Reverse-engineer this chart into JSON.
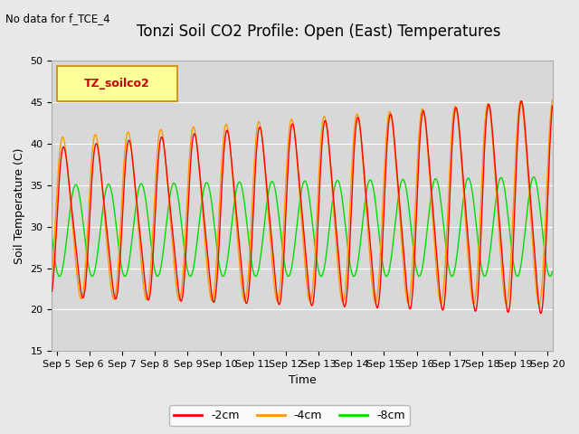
{
  "title": "Tonzi Soil CO2 Profile: Open (East) Temperatures",
  "top_left_note": "No data for f_TCE_4",
  "ylabel": "Soil Temperature (C)",
  "xlabel": "Time",
  "ylim": [
    15,
    50
  ],
  "xlim_days": [
    4.85,
    20.15
  ],
  "yticks": [
    15,
    20,
    25,
    30,
    35,
    40,
    45,
    50
  ],
  "xtick_labels": [
    "Sep 5",
    "Sep 6",
    "Sep 7",
    "Sep 8",
    "Sep 9",
    "Sep 10",
    "Sep 11",
    "Sep 12",
    "Sep 13",
    "Sep 14",
    "Sep 15",
    "Sep 16",
    "Sep 17",
    "Sep 18",
    "Sep 19",
    "Sep 20"
  ],
  "xtick_positions": [
    5,
    6,
    7,
    8,
    9,
    10,
    11,
    12,
    13,
    14,
    15,
    16,
    17,
    18,
    19,
    20
  ],
  "line_colors": [
    "#ff0000",
    "#ff9900",
    "#00dd00"
  ],
  "line_labels": [
    "-2cm",
    "-4cm",
    "-8cm"
  ],
  "background_color": "#e8e8e8",
  "plot_bg_color": "#d8d8d8",
  "legend_box_facecolor": "#ffff99",
  "legend_box_label": "TZ_soilco2",
  "title_fontsize": 12,
  "label_fontsize": 9,
  "tick_fontsize": 8,
  "note_fontsize": 8.5,
  "legend_fontsize": 9
}
